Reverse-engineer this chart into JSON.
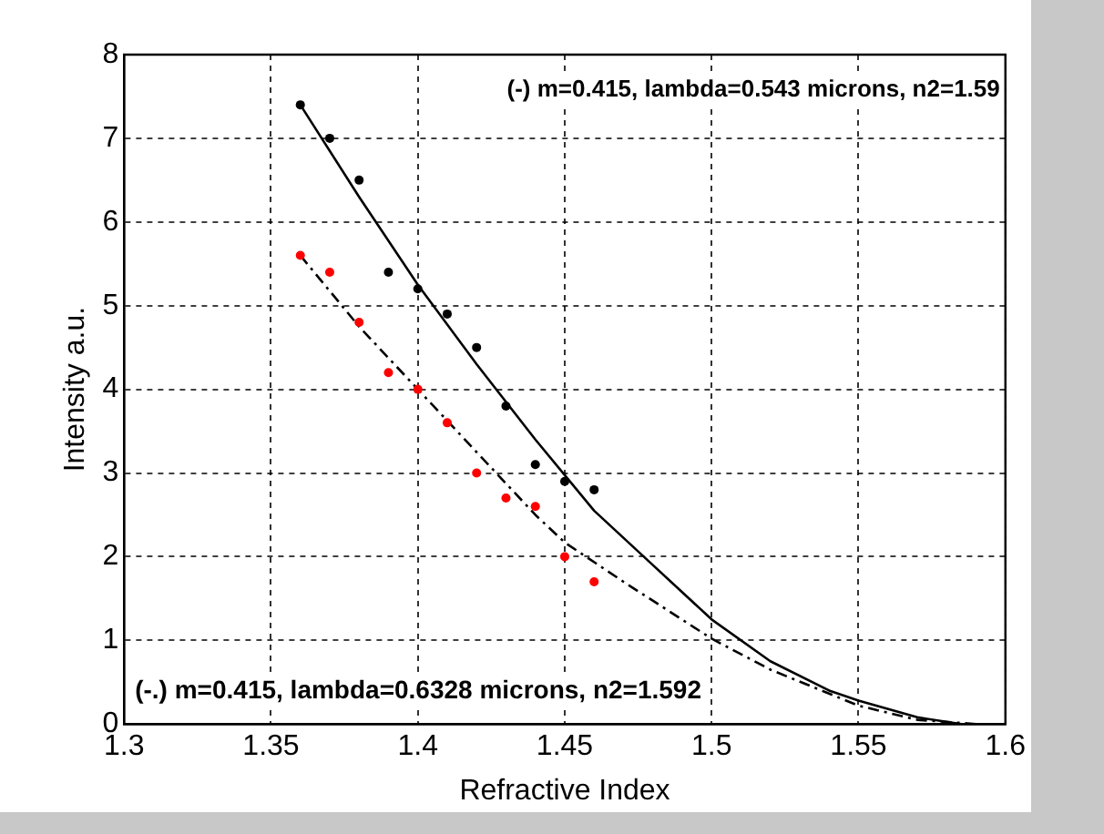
{
  "chart_data": {
    "type": "scatter",
    "xlabel": "Refractive Index",
    "ylabel": "Intensity a.u.",
    "xlim": [
      1.3,
      1.6
    ],
    "xticks": [
      1.3,
      1.35,
      1.4,
      1.45,
      1.5,
      1.55,
      1.6
    ],
    "ylim": [
      0,
      8
    ],
    "yticks": [
      0,
      1,
      2,
      3,
      4,
      5,
      6,
      7,
      8
    ],
    "grid": true,
    "legend": false,
    "marker": "circle",
    "annotations": [
      "(-) m=0.415, lambda=0.543 microns, n2=1.59",
      "(-.) m=0.415, lambda=0.6328 microns, n2=1.592"
    ],
    "series": [
      {
        "type": "scatter",
        "color": "#000000",
        "x": [
          1.36,
          1.37,
          1.38,
          1.39,
          1.4,
          1.41,
          1.42,
          1.43,
          1.44,
          1.45,
          1.46
        ],
        "values": [
          7.4,
          7.0,
          6.5,
          5.4,
          5.2,
          4.9,
          4.5,
          3.8,
          3.1,
          2.9,
          2.8
        ]
      },
      {
        "type": "scatter",
        "color": "#ff0000",
        "x": [
          1.36,
          1.37,
          1.38,
          1.39,
          1.4,
          1.41,
          1.42,
          1.43,
          1.44,
          1.45,
          1.46
        ],
        "values": [
          5.6,
          5.4,
          4.8,
          4.2,
          4.0,
          3.6,
          3.0,
          2.7,
          2.6,
          2.0,
          1.7
        ]
      },
      {
        "type": "line",
        "color": "#000000",
        "line_style": "solid",
        "marker": "none",
        "x": [
          1.36,
          1.38,
          1.4,
          1.42,
          1.44,
          1.46,
          1.48,
          1.5,
          1.52,
          1.54,
          1.55,
          1.57,
          1.585
        ],
        "values": [
          7.4,
          6.3,
          5.25,
          4.3,
          3.4,
          2.55,
          1.9,
          1.25,
          0.75,
          0.4,
          0.28,
          0.08,
          0
        ]
      },
      {
        "type": "line",
        "color": "#000000",
        "line_style": "dashed",
        "marker": "none",
        "x": [
          1.36,
          1.38,
          1.4,
          1.42,
          1.44,
          1.45,
          1.47,
          1.5,
          1.52,
          1.55,
          1.57,
          1.59
        ],
        "values": [
          5.6,
          4.75,
          4.0,
          3.25,
          2.5,
          2.17,
          1.7,
          1.02,
          0.65,
          0.22,
          0.05,
          0
        ]
      }
    ]
  }
}
